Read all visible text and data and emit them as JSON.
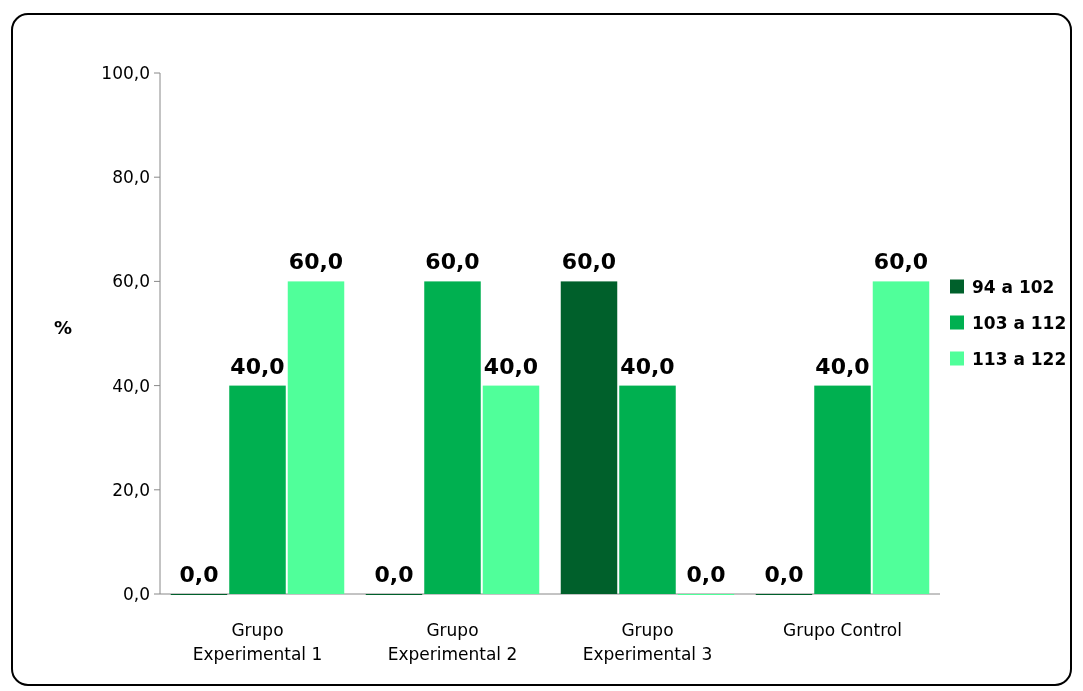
{
  "chart_data": {
    "type": "bar",
    "ylabel": "%",
    "categories": [
      "Grupo Experimental 1",
      "Grupo Experimental 2",
      "Grupo Experimental 3",
      "Grupo Control"
    ],
    "series": [
      {
        "name": "94 a 102",
        "color": "#00602b",
        "values": [
          0,
          0,
          60,
          0
        ],
        "value_labels": [
          "0,0",
          "0,0",
          "60,0",
          "0,0"
        ]
      },
      {
        "name": "103 a 112",
        "color": "#00b050",
        "values": [
          40,
          60,
          40,
          40
        ],
        "value_labels": [
          "40,0",
          "60,0",
          "40,0",
          "40,0"
        ]
      },
      {
        "name": "113 a 122",
        "color": "#50ff9a",
        "values": [
          60,
          40,
          0,
          60
        ],
        "value_labels": [
          "60,0",
          "40,0",
          "0,0",
          "60,0"
        ]
      }
    ],
    "ylim": [
      0,
      100
    ],
    "yticks": [
      {
        "value": 0,
        "label": "0,0"
      },
      {
        "value": 20,
        "label": "20,0"
      },
      {
        "value": 40,
        "label": "40,0"
      },
      {
        "value": 60,
        "label": "60,0"
      },
      {
        "value": 80,
        "label": "80,0"
      },
      {
        "value": 100,
        "label": "100,0"
      }
    ],
    "legend": "right",
    "grid": false
  }
}
